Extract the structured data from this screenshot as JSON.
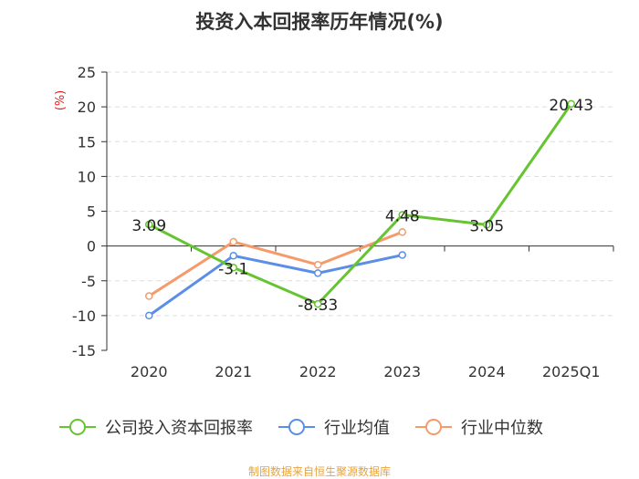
{
  "chart_data": {
    "type": "line",
    "title": "投资入本回报率历年情况(%)",
    "ylabel": "(%)",
    "xlabel": "",
    "categories": [
      "2020",
      "2021",
      "2022",
      "2023",
      "2024",
      "2025Q1"
    ],
    "ylim": [
      -15,
      25
    ],
    "yticks": [
      25,
      20,
      15,
      10,
      5,
      0,
      -5,
      -10,
      -15
    ],
    "grid": true,
    "legend_position": "bottom",
    "series": [
      {
        "name": "公司投入资本回报率",
        "color": "#66c431",
        "values": [
          3.09,
          -3.1,
          -8.33,
          4.48,
          3.05,
          20.43
        ],
        "labels": [
          "3.09",
          "-3.1",
          "-8.33",
          "4.48",
          "3.05",
          "20.43"
        ]
      },
      {
        "name": "行业均值",
        "color": "#5b8ee6",
        "values": [
          -10.0,
          -1.4,
          -3.9,
          -1.3,
          null,
          null
        ]
      },
      {
        "name": "行业中位数",
        "color": "#f59a6a",
        "values": [
          -7.2,
          0.6,
          -2.7,
          2.0,
          null,
          null
        ]
      }
    ]
  },
  "footer": {
    "source": "制图数据来自恒生聚源数据库",
    "color": "#e8a33c"
  }
}
